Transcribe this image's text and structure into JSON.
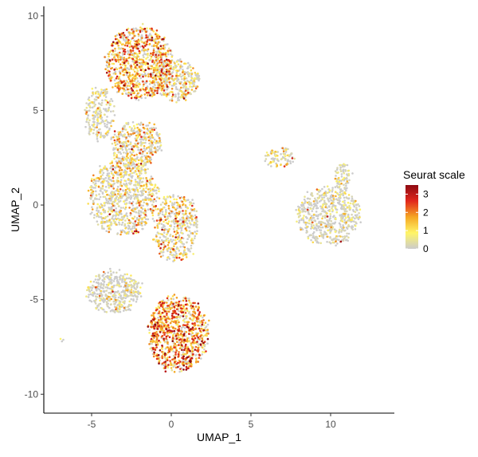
{
  "chart_data": {
    "type": "scatter",
    "xlabel": "UMAP_1",
    "ylabel": "UMAP_2",
    "xlim": [
      -8.0,
      14.0
    ],
    "ylim": [
      -11.0,
      10.5
    ],
    "xticks": [
      -5,
      0,
      5,
      10
    ],
    "yticks": [
      -10,
      -5,
      0,
      5,
      10
    ],
    "grid": false,
    "legend": {
      "title": "Seurat scale",
      "placement": "right",
      "breaks": [
        0,
        1,
        2,
        3
      ],
      "range": [
        0,
        3.5
      ],
      "colors": [
        "#cccccc",
        "#fff566",
        "#f5a623",
        "#e1271c",
        "#8e0a12"
      ]
    },
    "clusters": [
      {
        "name_hint": "top-left",
        "cx": -2.0,
        "cy": 7.5,
        "rx": 2.1,
        "ry": 1.9,
        "n": 900,
        "mean_expr": 1.5
      },
      {
        "name_hint": "top-right-lobe",
        "cx": 0.2,
        "cy": 6.6,
        "rx": 1.6,
        "ry": 1.1,
        "n": 350,
        "mean_expr": 0.9
      },
      {
        "name_hint": "thin-arc",
        "cx": -4.5,
        "cy": 4.8,
        "rx": 0.9,
        "ry": 1.5,
        "n": 220,
        "mean_expr": 0.6
      },
      {
        "name_hint": "upper-mid",
        "cx": -2.2,
        "cy": 3.2,
        "rx": 1.6,
        "ry": 1.2,
        "n": 400,
        "mean_expr": 0.9
      },
      {
        "name_hint": "mid-left",
        "cx": -3.0,
        "cy": 0.4,
        "rx": 2.2,
        "ry": 2.0,
        "n": 850,
        "mean_expr": 0.8
      },
      {
        "name_hint": "mid-right",
        "cx": 0.3,
        "cy": -1.2,
        "rx": 1.4,
        "ry": 1.8,
        "n": 450,
        "mean_expr": 1.0
      },
      {
        "name_hint": "lower-left",
        "cx": -3.6,
        "cy": -4.6,
        "rx": 1.7,
        "ry": 1.1,
        "n": 420,
        "mean_expr": 0.3
      },
      {
        "name_hint": "bottom",
        "cx": 0.4,
        "cy": -6.8,
        "rx": 1.9,
        "ry": 2.0,
        "n": 900,
        "mean_expr": 1.7
      },
      {
        "name_hint": "right-island",
        "cx": 9.9,
        "cy": -0.6,
        "rx": 2.0,
        "ry": 1.5,
        "n": 600,
        "mean_expr": 0.35
      },
      {
        "name_hint": "right-island-tip",
        "cx": 10.8,
        "cy": 1.5,
        "rx": 0.5,
        "ry": 0.8,
        "n": 80,
        "mean_expr": 0.5
      },
      {
        "name_hint": "small-arm",
        "cx": 6.8,
        "cy": 2.5,
        "rx": 1.0,
        "ry": 0.5,
        "n": 90,
        "mean_expr": 0.9
      },
      {
        "name_hint": "outlier",
        "cx": -6.8,
        "cy": -7.2,
        "rx": 0.15,
        "ry": 0.08,
        "n": 3,
        "mean_expr": 0.6
      }
    ]
  }
}
